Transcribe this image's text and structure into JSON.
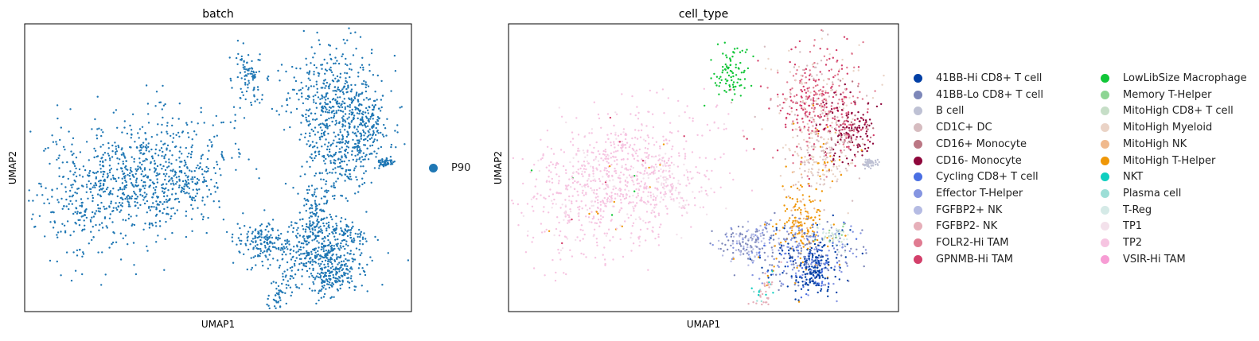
{
  "chart_data": [
    {
      "type": "scatter",
      "title": "batch",
      "xlabel": "UMAP1",
      "ylabel": "UMAP2",
      "grid": false,
      "legend_position": "right",
      "series": [
        {
          "name": "P90",
          "color": "#1f77b4"
        }
      ]
    },
    {
      "type": "scatter",
      "title": "cell_type",
      "xlabel": "UMAP1",
      "ylabel": "UMAP2",
      "grid": false,
      "legend_position": "right",
      "series": [
        {
          "name": "41BB-Hi CD8+ T cell",
          "color": "#023fa5"
        },
        {
          "name": "41BB-Lo CD8+ T cell",
          "color": "#7d87b9"
        },
        {
          "name": "B cell",
          "color": "#bec1d4"
        },
        {
          "name": "CD1C+ DC",
          "color": "#d6bcc0"
        },
        {
          "name": "CD16+ Monocyte",
          "color": "#bb7784"
        },
        {
          "name": "CD16- Monocyte",
          "color": "#8e063b"
        },
        {
          "name": "Cycling CD8+ T cell",
          "color": "#4a6fe3"
        },
        {
          "name": "Effector T-Helper",
          "color": "#8595e1"
        },
        {
          "name": "FGFBP2+ NK",
          "color": "#b5bbe3"
        },
        {
          "name": "FGFBP2- NK",
          "color": "#e6afb9"
        },
        {
          "name": "FOLR2-Hi TAM",
          "color": "#e07b91"
        },
        {
          "name": "GPNMB-Hi TAM",
          "color": "#d33f6a"
        },
        {
          "name": "LowLibSize Macrophage",
          "color": "#11c638"
        },
        {
          "name": "Memory T-Helper",
          "color": "#8dd593"
        },
        {
          "name": "MitoHigh CD8+ T cell",
          "color": "#c6dec7"
        },
        {
          "name": "MitoHigh Myeloid",
          "color": "#ead3c6"
        },
        {
          "name": "MitoHigh NK",
          "color": "#f0b98d"
        },
        {
          "name": "MitoHigh T-Helper",
          "color": "#ef9708"
        },
        {
          "name": "NKT",
          "color": "#0fcfc0"
        },
        {
          "name": "Plasma cell",
          "color": "#9cded6"
        },
        {
          "name": "T-Reg",
          "color": "#d5eae7"
        },
        {
          "name": "TP1",
          "color": "#f3e1eb"
        },
        {
          "name": "TP2",
          "color": "#f6c4e1"
        },
        {
          "name": "VSIR-Hi TAM",
          "color": "#f79cd4"
        }
      ]
    }
  ]
}
